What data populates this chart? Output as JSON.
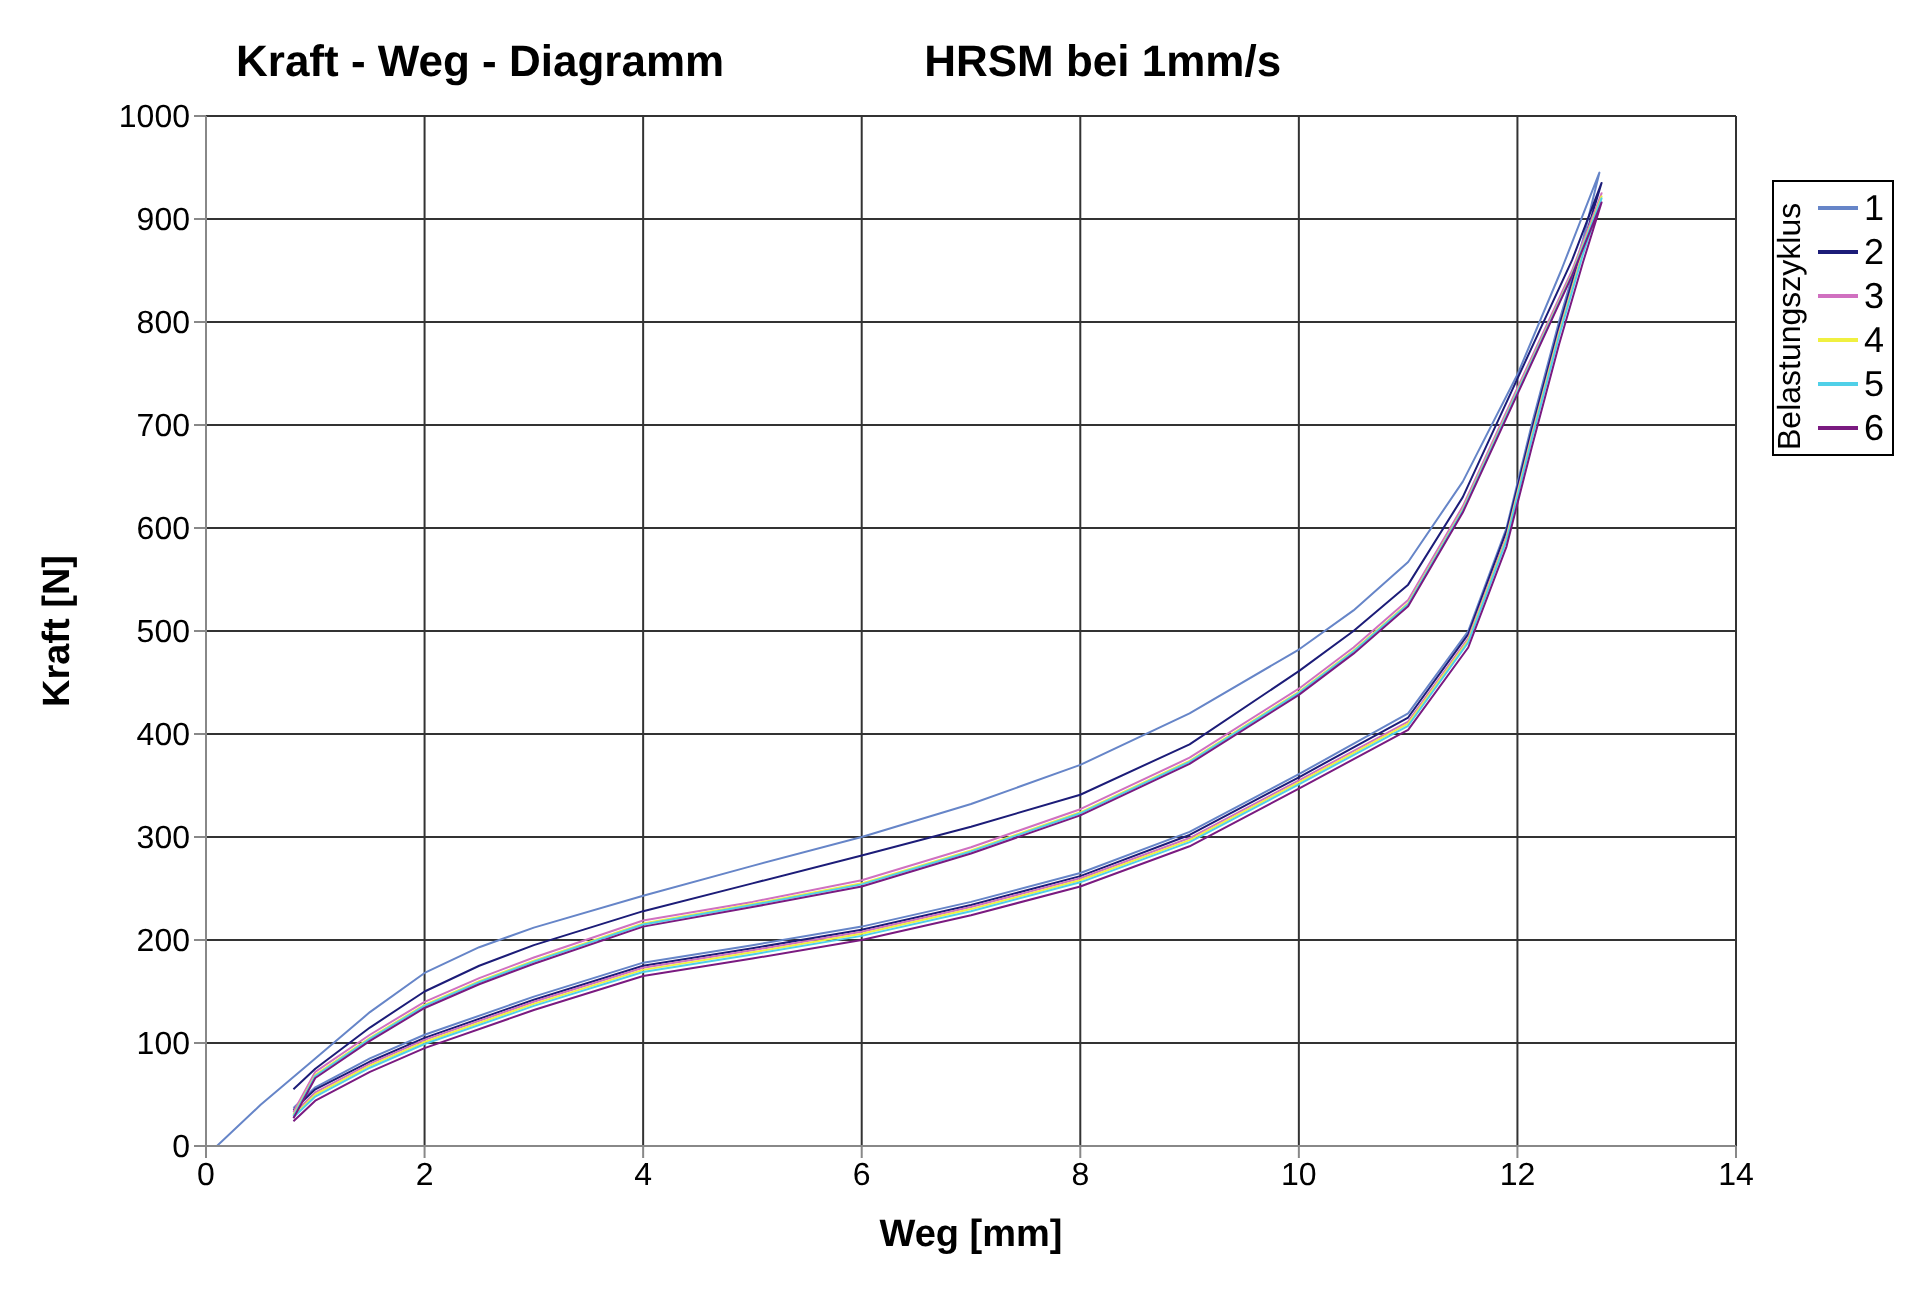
{
  "chart_data": {
    "type": "line",
    "title": "Kraft - Weg - Diagramm",
    "subtitle": "HRSM bei 1mm/s",
    "xlabel": "Weg [mm]",
    "ylabel": "Kraft [N]",
    "legend_title": "Belastungszyklus",
    "legend": "right",
    "grid": true,
    "marker": "none",
    "line_style": "solid",
    "xlim": [
      0,
      14
    ],
    "xticks": [
      0,
      2,
      4,
      6,
      8,
      10,
      12,
      14
    ],
    "ylim": [
      0,
      1000
    ],
    "yticks": [
      0,
      100,
      200,
      300,
      400,
      500,
      600,
      700,
      800,
      900,
      1000
    ],
    "series": [
      {
        "name": "1",
        "color": "#6685c8",
        "x": [
          0.1,
          0.5,
          1,
          1.5,
          2,
          2.5,
          3,
          4,
          5,
          6,
          7,
          8,
          9,
          10,
          10.5,
          11,
          11.5,
          12,
          12.4,
          12.75,
          12.6,
          12.38,
          12.13,
          11.9,
          11.55,
          11,
          10,
          9,
          8,
          7,
          6,
          5,
          4,
          3,
          2,
          1.5,
          1,
          0.8
        ],
        "values": [
          0,
          40,
          85,
          130,
          168,
          193,
          212,
          243,
          272,
          300,
          332,
          370,
          420,
          482,
          520,
          567,
          645,
          749,
          850,
          945,
          880,
          800,
          700,
          600,
          500,
          420,
          361,
          305,
          265,
          237,
          213,
          195,
          178,
          145,
          108,
          85,
          57,
          37
        ]
      },
      {
        "name": "2",
        "color": "#1c1c78",
        "x": [
          0.8,
          1,
          1.5,
          2,
          2.5,
          3,
          4,
          5,
          6,
          7,
          8,
          9,
          10,
          10.5,
          11,
          11.5,
          12,
          12.5,
          12.77,
          12.6,
          12.38,
          12.13,
          11.9,
          11.55,
          11,
          10,
          9,
          8,
          7,
          6,
          5,
          4,
          3,
          2,
          1.5,
          1,
          0.8
        ],
        "values": [
          55,
          75,
          115,
          150,
          175,
          195,
          228,
          255,
          282,
          310,
          341,
          390,
          461,
          500,
          545,
          630,
          745,
          860,
          935,
          875,
          795,
          695,
          597,
          497,
          416,
          358,
          302,
          262,
          234,
          210,
          192,
          175,
          142,
          105,
          82,
          55,
          35
        ]
      },
      {
        "name": "3",
        "color": "#d070c0",
        "x": [
          0.8,
          1,
          1.5,
          2,
          2.5,
          3,
          4,
          5,
          6,
          7,
          8,
          9,
          10,
          10.5,
          11,
          11.5,
          12,
          12.5,
          12.77,
          12.6,
          12.38,
          12.13,
          11.9,
          11.55,
          11,
          10,
          9,
          8,
          7,
          6,
          5,
          4,
          3,
          2,
          1.5,
          1,
          0.8
        ],
        "values": [
          33,
          72,
          108,
          140,
          163,
          183,
          219,
          237,
          258,
          290,
          327,
          377,
          444,
          484,
          530,
          621,
          736,
          850,
          925,
          870,
          790,
          690,
          592,
          493,
          412,
          355,
          299,
          260,
          232,
          208,
          190,
          173,
          140,
          103,
          80,
          52,
          31
        ]
      },
      {
        "name": "4",
        "color": "#f0f040",
        "x": [
          0.8,
          1,
          1.5,
          2,
          2.5,
          3,
          4,
          5,
          6,
          7,
          8,
          9,
          10,
          10.5,
          11,
          11.5,
          12,
          12.5,
          12.77,
          12.6,
          12.38,
          12.13,
          11.9,
          11.55,
          11,
          10,
          9,
          8,
          7,
          6,
          5,
          4,
          3,
          2,
          1.5,
          1,
          0.8
        ],
        "values": [
          30,
          69,
          105,
          137,
          160,
          180,
          216,
          235,
          255,
          287,
          324,
          374,
          441,
          481,
          527,
          618,
          733,
          847,
          922,
          868,
          788,
          688,
          590,
          491,
          410,
          353,
          297,
          258,
          230,
          206,
          188,
          171,
          138,
          101,
          78,
          50,
          29
        ]
      },
      {
        "name": "5",
        "color": "#50d0e8",
        "x": [
          0.8,
          1,
          1.5,
          2,
          2.5,
          3,
          4,
          5,
          6,
          7,
          8,
          9,
          10,
          10.5,
          11,
          11.5,
          12,
          12.5,
          12.77,
          12.6,
          12.38,
          12.13,
          11.9,
          11.55,
          11,
          10,
          9,
          8,
          7,
          6,
          5,
          4,
          3,
          2,
          1.5,
          1,
          0.8
        ],
        "values": [
          29,
          68,
          104,
          136,
          159,
          179,
          215,
          234,
          254,
          286,
          323,
          373,
          440,
          480,
          526,
          617,
          732,
          846,
          920,
          866,
          786,
          686,
          588,
          489,
          408,
          351,
          295,
          256,
          228,
          204,
          186,
          169,
          136,
          99,
          76,
          48,
          28
        ]
      },
      {
        "name": "6",
        "color": "#7a1a80",
        "x": [
          0.8,
          1,
          1.5,
          2,
          2.5,
          3,
          4,
          5,
          6,
          7,
          8,
          9,
          10,
          10.5,
          11,
          11.5,
          12,
          12.5,
          12.77,
          12.6,
          12.38,
          12.13,
          11.9,
          11.55,
          11,
          10,
          9,
          8,
          7,
          6,
          5,
          4,
          3,
          2,
          1.5,
          1,
          0.8
        ],
        "values": [
          27,
          66,
          102,
          134,
          157,
          177,
          213,
          232,
          252,
          284,
          321,
          371,
          438,
          478,
          524,
          615,
          730,
          845,
          916,
          858,
          778,
          678,
          582,
          484,
          404,
          347,
          291,
          252,
          224,
          200,
          182,
          165,
          132,
          95,
          72,
          44,
          24
        ]
      }
    ]
  }
}
